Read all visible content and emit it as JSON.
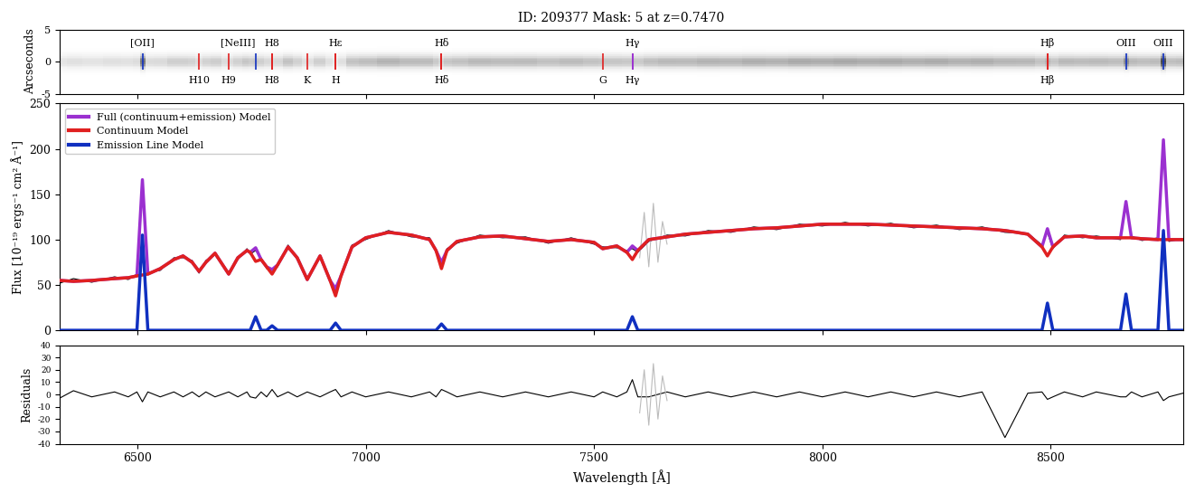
{
  "chart_data": [
    {
      "type": "image",
      "title": "ID: 209377 Mask: 5 at z=0.7470",
      "ylabel": "Arcseconds",
      "xlim": [
        6330,
        8790
      ],
      "xticks": [
        6500,
        7000,
        7500,
        8000,
        8500
      ],
      "ylim": [
        -5,
        5
      ],
      "yticks": [
        -5,
        0,
        5
      ],
      "tick_labels": "y",
      "emission_lines": [
        {
          "text": "[OII]",
          "x": 6511,
          "color": "#1030c0"
        },
        {
          "text": "[NeIII]",
          "x": 6759,
          "color": "#1030c0"
        },
        {
          "text": "H8",
          "x": 6795,
          "color": "#e02020"
        },
        {
          "text": "Hε",
          "x": 6934,
          "color": "#e02020"
        },
        {
          "text": "Hδ",
          "x": 7166,
          "color": "#e02020"
        },
        {
          "text": "Hγ",
          "x": 7584,
          "color": "#9b30d0"
        },
        {
          "text": "Hβ",
          "x": 8493,
          "color": "#e02020"
        },
        {
          "text": "OIII",
          "x": 8665,
          "color": "#1030c0"
        },
        {
          "text": "OIII",
          "x": 8747,
          "color": "#1030c0"
        }
      ],
      "absorption_lines": [
        {
          "text": "H10",
          "x": 6635,
          "color": "#e02020"
        },
        {
          "text": "H9",
          "x": 6700,
          "color": "#e02020"
        },
        {
          "text": "H8",
          "x": 6795,
          "color": "#e02020"
        },
        {
          "text": "K",
          "x": 6872,
          "color": "#e02020"
        },
        {
          "text": "H",
          "x": 6934,
          "color": "#e02020"
        },
        {
          "text": "Hδ",
          "x": 7166,
          "color": "#e02020"
        },
        {
          "text": "G",
          "x": 7519,
          "color": "#e02020"
        },
        {
          "text": "Hγ",
          "x": 7584,
          "color": "#9b30d0"
        },
        {
          "text": "Hβ",
          "x": 8493,
          "color": "#e02020"
        }
      ]
    },
    {
      "type": "line",
      "ylabel": "Flux [10⁻¹⁹ ergs⁻¹ cm² Å⁻¹]",
      "xlim": [
        6330,
        8790
      ],
      "xticks": [
        6500,
        7000,
        7500,
        8000,
        8500
      ],
      "ylim": [
        0,
        250
      ],
      "yticks": [
        0,
        50,
        100,
        150,
        200,
        250
      ],
      "tick_labels": "y",
      "legend": "upper left",
      "x": [
        6330,
        6360,
        6400,
        6450,
        6480,
        6499,
        6511,
        6523,
        6550,
        6580,
        6600,
        6620,
        6635,
        6650,
        6670,
        6700,
        6720,
        6740,
        6747,
        6759,
        6771,
        6783,
        6795,
        6807,
        6830,
        6850,
        6872,
        6900,
        6922,
        6934,
        6946,
        6970,
        7000,
        7050,
        7100,
        7140,
        7154,
        7166,
        7178,
        7200,
        7250,
        7300,
        7350,
        7400,
        7450,
        7500,
        7519,
        7550,
        7572,
        7584,
        7596,
        7620,
        7660,
        7700,
        7750,
        7800,
        7850,
        7900,
        7950,
        8000,
        8050,
        8100,
        8150,
        8200,
        8250,
        8300,
        8350,
        8400,
        8450,
        8481,
        8493,
        8505,
        8530,
        8570,
        8600,
        8653,
        8665,
        8677,
        8700,
        8735,
        8747,
        8759,
        8790
      ],
      "series": [
        {
          "color": "black",
          "values": [
            52,
            57,
            53,
            59,
            56,
            62,
            160,
            64,
            66,
            80,
            80,
            77,
            63,
            77,
            83,
            64,
            78,
            90,
            84,
            88,
            80,
            68,
            66,
            70,
            94,
            78,
            58,
            80,
            57,
            42,
            58,
            94,
            100,
            110,
            103,
            102,
            86,
            72,
            90,
            96,
            105,
            102,
            103,
            96,
            102,
            95,
            92,
            91,
            88,
            90,
            86,
            98,
            105,
            104,
            110,
            108,
            114,
            111,
            117,
            115,
            119,
            115,
            118,
            113,
            116,
            111,
            114,
            108,
            107,
            94,
            108,
            90,
            105,
            102,
            104,
            100,
            140,
            104,
            99,
            102,
            205,
            98,
            101
          ]
        },
        {
          "color": "#bbbbbb",
          "x": [
            7600,
            7610,
            7620,
            7630,
            7640,
            7650,
            7660
          ],
          "values": [
            80,
            130,
            70,
            140,
            75,
            120,
            95
          ]
        },
        {
          "name": "Full (continuum+emission) Model",
          "color": "#9b30d0",
          "values": [
            55,
            54,
            55,
            57,
            58,
            60,
            166,
            62,
            68,
            78,
            82,
            75,
            65,
            75,
            85,
            62,
            80,
            88,
            86,
            91,
            78,
            70,
            67,
            72,
            92,
            80,
            56,
            82,
            55,
            46,
            60,
            92,
            102,
            108,
            105,
            100,
            88,
            75,
            88,
            98,
            103,
            104,
            101,
            98,
            100,
            97,
            90,
            93,
            86,
            93,
            88,
            100,
            103,
            106,
            108,
            110,
            112,
            113,
            115,
            117,
            117,
            117,
            116,
            115,
            114,
            113,
            112,
            110,
            106,
            92,
            112,
            92,
            103,
            104,
            102,
            102,
            142,
            102,
            101,
            100,
            210,
            100,
            100
          ]
        },
        {
          "name": "Continuum Model",
          "color": "#e02020",
          "values": [
            55,
            54,
            55,
            57,
            58,
            60,
            61,
            62,
            68,
            78,
            82,
            75,
            65,
            75,
            85,
            62,
            80,
            88,
            86,
            76,
            78,
            70,
            62,
            72,
            92,
            80,
            56,
            82,
            55,
            38,
            60,
            92,
            102,
            108,
            105,
            100,
            88,
            68,
            88,
            98,
            103,
            104,
            101,
            98,
            100,
            97,
            90,
            93,
            86,
            78,
            88,
            100,
            103,
            106,
            108,
            110,
            112,
            113,
            115,
            117,
            117,
            117,
            116,
            115,
            114,
            113,
            112,
            110,
            106,
            92,
            82,
            92,
            103,
            104,
            102,
            102,
            102,
            102,
            101,
            100,
            100,
            100,
            100
          ]
        },
        {
          "name": "Emission Line Model",
          "color": "#1030c0",
          "values": [
            0,
            0,
            0,
            0,
            0,
            0,
            105,
            0,
            0,
            0,
            0,
            0,
            0,
            0,
            0,
            0,
            0,
            0,
            0,
            15,
            0,
            0,
            5,
            0,
            0,
            0,
            0,
            0,
            0,
            8,
            0,
            0,
            0,
            0,
            0,
            0,
            0,
            7,
            0,
            0,
            0,
            0,
            0,
            0,
            0,
            0,
            0,
            0,
            0,
            15,
            0,
            0,
            0,
            0,
            0,
            0,
            0,
            0,
            0,
            0,
            0,
            0,
            0,
            0,
            0,
            0,
            0,
            0,
            0,
            0,
            30,
            0,
            0,
            0,
            0,
            0,
            40,
            0,
            0,
            0,
            110,
            0,
            0
          ]
        }
      ]
    },
    {
      "type": "line",
      "ylabel": "Residuals",
      "xlabel": "Wavelength [Å]",
      "xlim": [
        6330,
        8790
      ],
      "xticks": [
        6500,
        7000,
        7500,
        8000,
        8500
      ],
      "ylim": [
        -40,
        40
      ],
      "yticks": [
        -40,
        -30,
        -20,
        -10,
        0,
        10,
        20,
        30,
        40
      ],
      "x": [
        6330,
        6360,
        6400,
        6450,
        6480,
        6499,
        6511,
        6523,
        6550,
        6580,
        6600,
        6620,
        6635,
        6650,
        6670,
        6700,
        6720,
        6740,
        6747,
        6759,
        6771,
        6783,
        6795,
        6807,
        6830,
        6850,
        6872,
        6900,
        6922,
        6934,
        6946,
        6970,
        7000,
        7050,
        7100,
        7140,
        7154,
        7166,
        7178,
        7200,
        7250,
        7300,
        7350,
        7400,
        7450,
        7500,
        7519,
        7550,
        7572,
        7584,
        7596,
        7620,
        7660,
        7700,
        7750,
        7800,
        7850,
        7900,
        7950,
        8000,
        8050,
        8100,
        8150,
        8200,
        8250,
        8300,
        8350,
        8400,
        8450,
        8481,
        8493,
        8505,
        8530,
        8570,
        8600,
        8653,
        8665,
        8677,
        8700,
        8735,
        8747,
        8759,
        8790
      ],
      "series": [
        {
          "color": "black",
          "values": [
            -3,
            3,
            -2,
            2,
            -2,
            2,
            -6,
            2,
            -2,
            2,
            -2,
            2,
            -2,
            2,
            -2,
            2,
            -2,
            2,
            -2,
            -3,
            2,
            -2,
            4,
            -2,
            2,
            -2,
            2,
            -2,
            2,
            4,
            -2,
            2,
            -2,
            2,
            -2,
            2,
            -2,
            4,
            2,
            -2,
            2,
            -2,
            2,
            -2,
            2,
            -2,
            2,
            -2,
            2,
            12,
            -2,
            -2,
            2,
            -2,
            2,
            -2,
            2,
            -2,
            2,
            -2,
            2,
            -2,
            2,
            -2,
            2,
            -2,
            2,
            -35,
            1,
            2,
            -4,
            -2,
            2,
            -2,
            2,
            -2,
            -2,
            2,
            -2,
            2,
            -5,
            -2,
            1
          ]
        },
        {
          "color": "#bbbbbb",
          "x": [
            7600,
            7610,
            7620,
            7630,
            7640,
            7650,
            7660
          ],
          "values": [
            -15,
            20,
            -25,
            25,
            -20,
            15,
            -5
          ]
        }
      ]
    }
  ]
}
